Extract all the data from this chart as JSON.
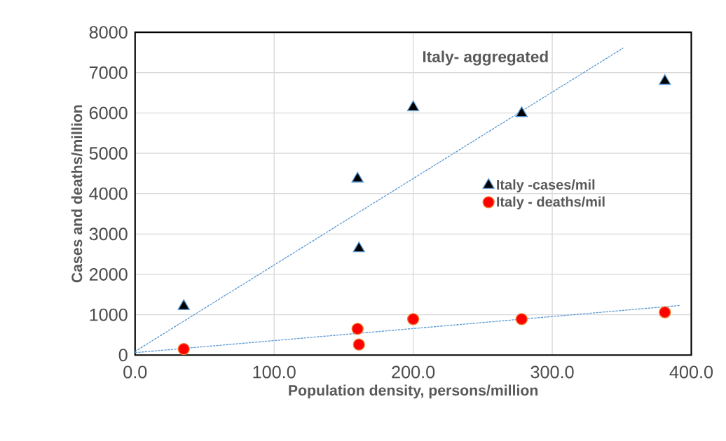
{
  "chart_data": {
    "type": "scatter",
    "xlabel": "Population density, persons/million",
    "ylabel": "Cases and deaths/million",
    "annotations": [
      "Italy- aggregated"
    ],
    "series": [
      {
        "name": "Italy -cases/mil",
        "color": "#000000",
        "marker": "triangle",
        "x": [
          35,
          161,
          160,
          200,
          278,
          381
        ],
        "values": [
          1210,
          2640,
          4370,
          6140,
          5990,
          6790
        ]
      },
      {
        "name": "Italy - deaths/mil",
        "color": "#ff0000",
        "marker": "circle",
        "x": [
          35,
          160,
          161,
          200,
          278,
          381
        ],
        "values": [
          150,
          650,
          260,
          890,
          890,
          1060
        ]
      },
      {
        "type": "line",
        "color": "#5b9bd5",
        "line_style": "dashed",
        "marker": "none",
        "x": [
          0,
          351
        ],
        "values": [
          90,
          7610
        ]
      },
      {
        "type": "line",
        "color": "#5b9bd5",
        "line_style": "dashed",
        "marker": "none",
        "x": [
          0,
          392
        ],
        "values": [
          60,
          1230
        ]
      }
    ],
    "xlim": [
      0,
      400
    ],
    "ylim": [
      0,
      8000
    ],
    "xticks": [
      {
        "value": 0,
        "label": "0.0"
      },
      {
        "value": 100,
        "label": "100.0"
      },
      {
        "value": 200,
        "label": "200.0"
      },
      {
        "value": 300,
        "label": "300.0"
      },
      {
        "value": 400,
        "label": "400.0"
      }
    ],
    "yticks": [
      0,
      1000,
      2000,
      3000,
      4000,
      5000,
      6000,
      7000,
      8000
    ],
    "grid": true,
    "legend": "right"
  }
}
